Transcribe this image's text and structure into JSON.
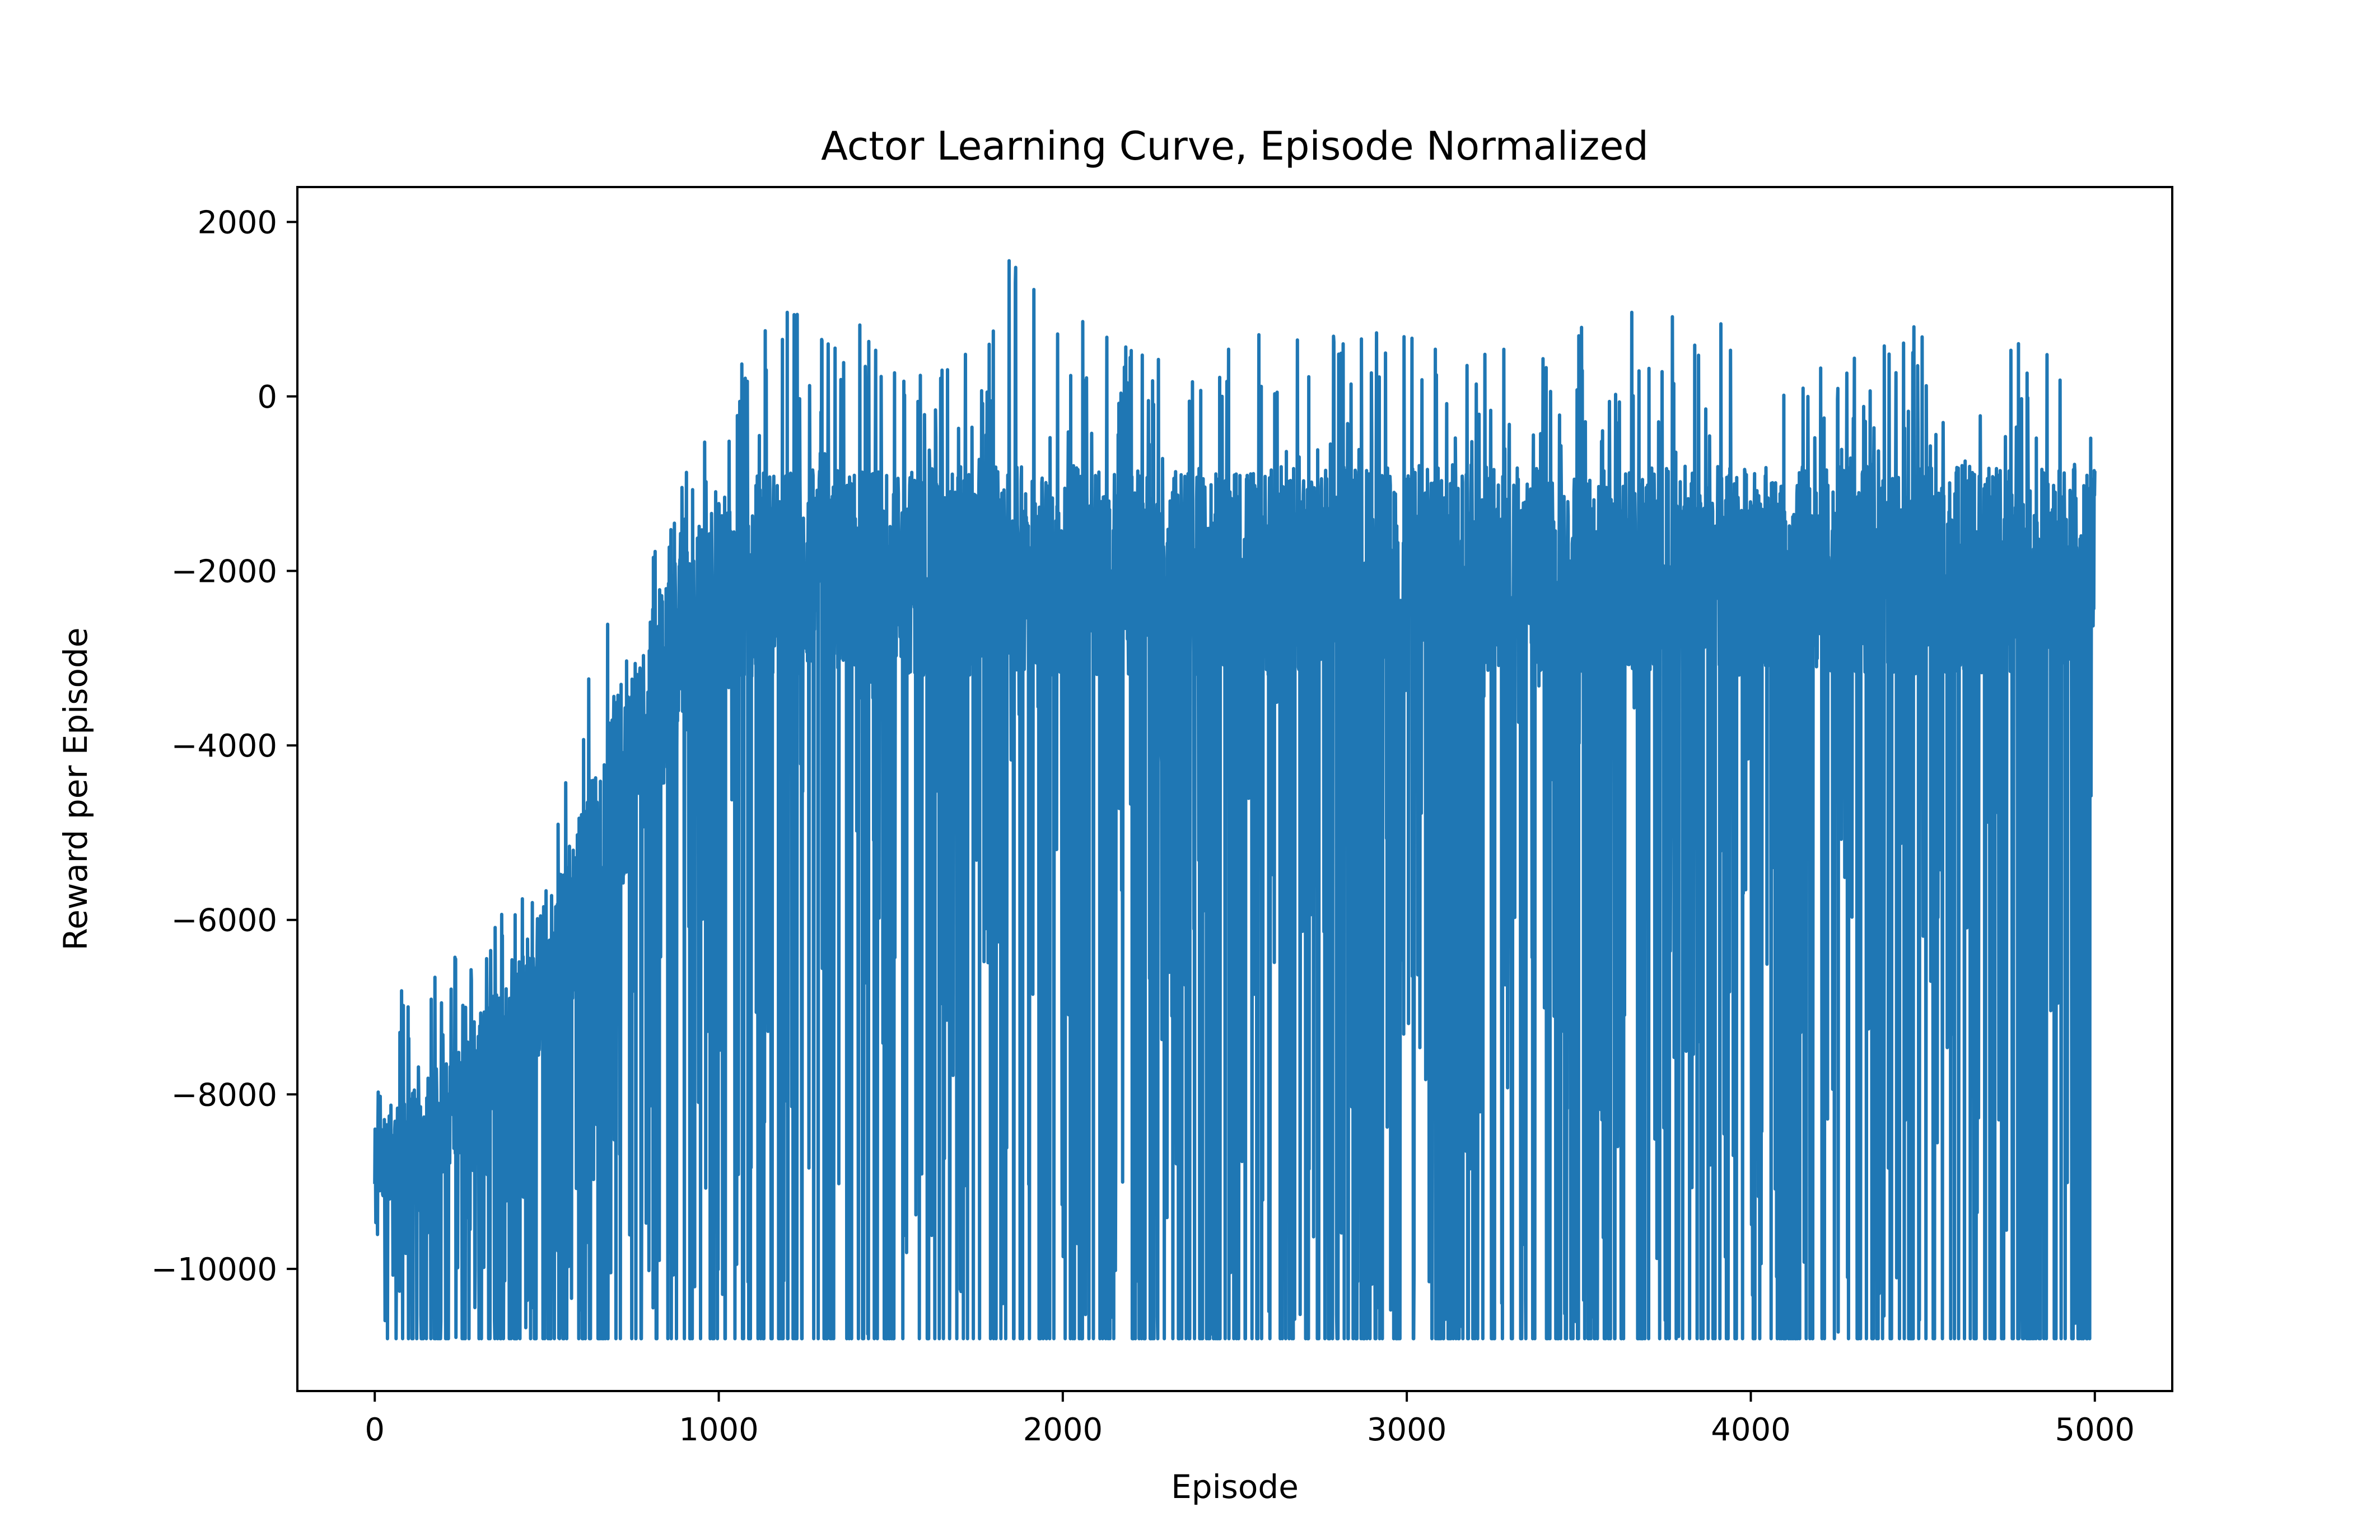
{
  "chart_data": {
    "type": "line",
    "title": "Actor Learning Curve, Episode Normalized",
    "xlabel": "Episode",
    "ylabel": "Reward per Episode",
    "xlim": [
      -225,
      5225
    ],
    "ylim": [
      -11400,
      2400
    ],
    "x_ticks": [
      0,
      1000,
      2000,
      3000,
      4000,
      5000
    ],
    "x_tick_labels": [
      "0",
      "1000",
      "2000",
      "3000",
      "4000",
      "5000"
    ],
    "y_ticks": [
      2000,
      0,
      -2000,
      -4000,
      -6000,
      -8000,
      -10000
    ],
    "y_tick_labels": [
      "2000",
      "0",
      "−2000",
      "−4000",
      "−6000",
      "−8000",
      "−10000"
    ],
    "grid": false,
    "line_color": "#1f77b4",
    "series": [
      {
        "x": [
          0,
          50,
          100,
          150,
          200,
          250,
          300,
          350,
          400,
          450,
          500,
          550,
          600,
          650,
          700,
          750,
          800,
          850,
          900,
          950,
          1000,
          1050,
          1100,
          1150,
          1200,
          1250,
          1300,
          1350,
          1400,
          1450,
          1500,
          1600,
          1700,
          1850,
          2000,
          2200,
          2400,
          2600,
          2800,
          3000,
          3200,
          3400,
          3600,
          3800,
          4000,
          4200,
          4400,
          4600,
          4800,
          5000
        ],
        "upper": [
          -7800,
          -6600,
          -6700,
          -7200,
          -6100,
          -6300,
          -6500,
          -5900,
          -5500,
          -4800,
          -4300,
          -4000,
          -3300,
          -1100,
          -3500,
          -2600,
          -1800,
          -1400,
          -800,
          -300,
          0,
          400,
          900,
          1100,
          1000,
          1000,
          800,
          900,
          1000,
          800,
          300,
          300,
          400,
          1800,
          1000,
          700,
          300,
          900,
          700,
          800,
          600,
          700,
          1100,
          1300,
          1100,
          500,
          700,
          1000,
          800,
          0
        ],
        "lower": [
          -10800,
          -10800,
          -10800,
          -10800,
          -10800,
          -10800,
          -10800,
          -10800,
          -10800,
          -10800,
          -10800,
          -10800,
          -10800,
          -10800,
          -10800,
          -10800,
          -10800,
          -10800,
          -10800,
          -10800,
          -10800,
          -10800,
          -10800,
          -10800,
          -10800,
          -10800,
          -10800,
          -10800,
          -10800,
          -10800,
          -10800,
          -10800,
          -10800,
          -10800,
          -10800,
          -10800,
          -10800,
          -10800,
          -10800,
          -10800,
          -10800,
          -10800,
          -10800,
          -10800,
          -10800,
          -10800,
          -10800,
          -10800,
          -10800,
          -10800
        ],
        "typical_high": [
          -8400,
          -8100,
          -8000,
          -7800,
          -7600,
          -7400,
          -7100,
          -6800,
          -6500,
          -6100,
          -5700,
          -5200,
          -4700,
          -4100,
          -3600,
          -3100,
          -2600,
          -2100,
          -1700,
          -1400,
          -1200,
          -1000,
          -900,
          -800,
          -800,
          -800,
          -800,
          -800,
          -800,
          -800,
          -800,
          -800,
          -800,
          -800,
          -800,
          -800,
          -800,
          -800,
          -800,
          -800,
          -800,
          -800,
          -800,
          -800,
          -800,
          -800,
          -800,
          -800,
          -800,
          -800
        ],
        "typical_low": [
          -9300,
          -9200,
          -9100,
          -9000,
          -8900,
          -8700,
          -8500,
          -8300,
          -8100,
          -7800,
          -7500,
          -7200,
          -6800,
          -6300,
          -5800,
          -5300,
          -4800,
          -4300,
          -3900,
          -3600,
          -3400,
          -3300,
          -3200,
          -3200,
          -3200,
          -3200,
          -3200,
          -3200,
          -3200,
          -3200,
          -3200,
          -3200,
          -3200,
          -3200,
          -3200,
          -3200,
          -3200,
          -3200,
          -3200,
          -3200,
          -3200,
          -3200,
          -3200,
          -3200,
          -3200,
          -3200,
          -3200,
          -3200,
          -3200,
          -3200
        ]
      }
    ]
  }
}
